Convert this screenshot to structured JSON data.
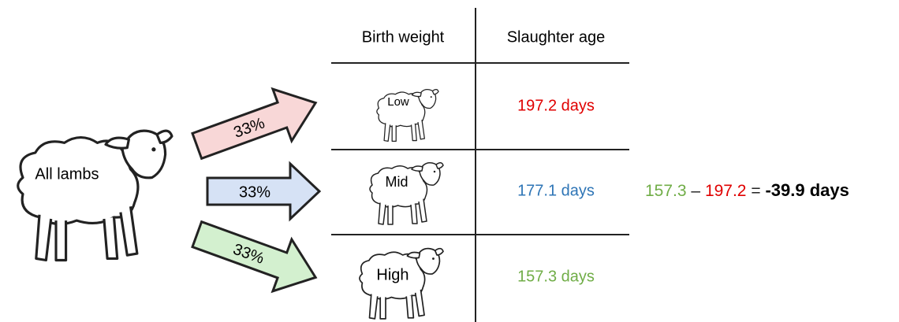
{
  "source": {
    "label": "All lambs"
  },
  "arrows": [
    {
      "label": "33%"
    },
    {
      "label": "33%"
    },
    {
      "label": "33%"
    }
  ],
  "table": {
    "headers": [
      "Birth weight",
      "Slaughter age"
    ],
    "rows": [
      [
        "Low",
        "197.2 days"
      ],
      [
        "Mid",
        "177.1 days"
      ],
      [
        "High",
        "157.3 days"
      ]
    ]
  },
  "equation": {
    "left": "157.3",
    "minus": "–",
    "right": "197.2",
    "equals": "=",
    "result": "-39.9 days"
  }
}
